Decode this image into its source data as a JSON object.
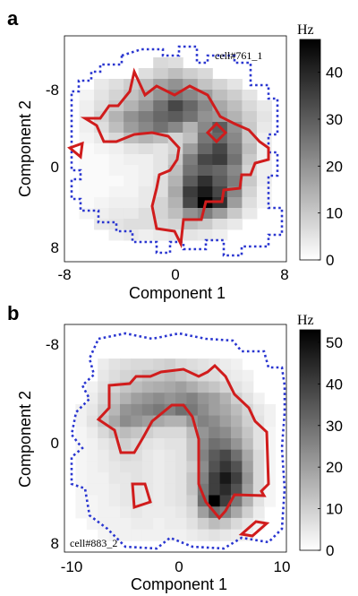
{
  "chart_data": [
    {
      "type": "heatmap",
      "panel_letter": "a",
      "cell_label": "cell#761_1",
      "xlabel": "Component 1",
      "ylabel": "Component 2",
      "xlim": [
        -8,
        8
      ],
      "ylim": [
        -10,
        10
      ],
      "y_inverted": true,
      "xticks": [
        -8,
        0,
        8
      ],
      "yticks": [
        -8,
        0,
        8
      ],
      "colorbar_title": "Hz",
      "colorbar_range": [
        0,
        47
      ],
      "colorbar_ticks": [
        0,
        10,
        20,
        30,
        40
      ],
      "grid": "15x21",
      "contours": [
        "red solid",
        "blue dotted"
      ],
      "rate_map": [
        [
          null,
          null,
          null,
          null,
          null,
          null,
          null,
          null,
          null,
          null,
          null,
          null,
          null,
          null,
          null
        ],
        [
          null,
          null,
          null,
          null,
          null,
          null,
          null,
          null,
          null,
          null,
          null,
          null,
          null,
          null,
          null
        ],
        [
          null,
          null,
          null,
          null,
          null,
          null,
          7,
          6,
          null,
          null,
          null,
          null,
          null,
          null,
          null
        ],
        [
          null,
          null,
          null,
          null,
          null,
          6,
          9,
          12,
          9,
          7,
          null,
          null,
          null,
          null,
          null
        ],
        [
          null,
          null,
          4,
          6,
          9,
          12,
          17,
          20,
          16,
          11,
          8,
          5,
          null,
          null,
          null
        ],
        [
          null,
          2,
          5,
          8,
          11,
          15,
          20,
          25,
          22,
          18,
          12,
          9,
          5,
          null,
          null
        ],
        [
          null,
          3,
          6,
          10,
          14,
          19,
          26,
          34,
          28,
          22,
          16,
          12,
          7,
          4,
          null
        ],
        [
          null,
          3,
          8,
          14,
          20,
          24,
          28,
          30,
          26,
          20,
          18,
          14,
          9,
          5,
          null
        ],
        [
          null,
          3,
          6,
          12,
          18,
          22,
          26,
          22,
          14,
          22,
          30,
          20,
          10,
          4,
          null
        ],
        [
          null,
          2,
          4,
          7,
          12,
          14,
          12,
          8,
          12,
          25,
          28,
          22,
          10,
          3,
          null
        ],
        [
          null,
          1,
          2,
          3,
          5,
          6,
          5,
          8,
          18,
          28,
          34,
          24,
          12,
          3,
          null
        ],
        [
          null,
          1,
          1,
          2,
          3,
          3,
          5,
          10,
          24,
          34,
          36,
          26,
          10,
          3,
          null
        ],
        [
          null,
          1,
          1,
          2,
          2,
          3,
          5,
          12,
          26,
          30,
          28,
          22,
          8,
          3,
          null
        ],
        [
          null,
          1,
          1,
          1,
          2,
          3,
          6,
          14,
          30,
          38,
          30,
          24,
          10,
          3,
          null
        ],
        [
          null,
          1,
          1,
          2,
          2,
          4,
          6,
          16,
          36,
          42,
          34,
          22,
          8,
          2,
          null
        ],
        [
          null,
          1,
          2,
          3,
          3,
          4,
          8,
          14,
          34,
          47,
          38,
          18,
          6,
          2,
          null
        ],
        [
          null,
          2,
          3,
          4,
          4,
          6,
          8,
          12,
          20,
          24,
          18,
          10,
          4,
          null,
          null
        ],
        [
          null,
          null,
          4,
          5,
          6,
          6,
          7,
          8,
          12,
          10,
          6,
          4,
          null,
          null,
          null
        ],
        [
          null,
          null,
          null,
          3,
          4,
          3,
          4,
          5,
          5,
          4,
          3,
          null,
          null,
          null,
          null
        ],
        [
          null,
          null,
          null,
          null,
          null,
          null,
          null,
          null,
          null,
          null,
          null,
          null,
          null,
          null,
          null
        ],
        [
          null,
          null,
          null,
          null,
          null,
          null,
          null,
          null,
          null,
          null,
          null,
          null,
          null,
          null,
          null
        ]
      ]
    },
    {
      "type": "heatmap",
      "panel_letter": "b",
      "cell_label": "cell#883_2",
      "xlabel": "Component 1",
      "ylabel": "Component 2",
      "xlim": [
        -10,
        10
      ],
      "ylim": [
        -10,
        10
      ],
      "y_inverted": true,
      "xticks": [
        -10,
        0,
        10
      ],
      "yticks": [
        -8,
        0,
        8
      ],
      "colorbar_title": "Hz",
      "colorbar_range": [
        0,
        53
      ],
      "colorbar_ticks": [
        0,
        10,
        20,
        30,
        40,
        50
      ],
      "grid": "20x20",
      "contours": [
        "red solid",
        "blue dotted"
      ],
      "rate_map": [
        [
          null,
          null,
          null,
          null,
          null,
          null,
          null,
          null,
          null,
          null,
          null,
          null,
          null,
          null,
          null,
          null,
          null,
          null,
          null,
          null
        ],
        [
          null,
          null,
          null,
          null,
          null,
          null,
          null,
          null,
          null,
          null,
          null,
          null,
          null,
          null,
          null,
          null,
          null,
          null,
          null,
          null
        ],
        [
          null,
          null,
          null,
          null,
          null,
          null,
          null,
          null,
          null,
          null,
          null,
          null,
          null,
          null,
          null,
          null,
          null,
          null,
          null,
          null
        ],
        [
          null,
          null,
          null,
          4,
          6,
          7,
          8,
          8,
          9,
          10,
          8,
          7,
          6,
          5,
          4,
          3,
          null,
          null,
          null,
          null
        ],
        [
          null,
          null,
          null,
          5,
          7,
          9,
          10,
          12,
          12,
          14,
          12,
          10,
          8,
          7,
          5,
          4,
          3,
          null,
          null,
          null
        ],
        [
          null,
          null,
          3,
          6,
          9,
          12,
          14,
          16,
          17,
          18,
          20,
          17,
          14,
          12,
          9,
          6,
          4,
          null,
          null,
          null
        ],
        [
          null,
          null,
          4,
          8,
          12,
          16,
          20,
          22,
          24,
          22,
          24,
          26,
          22,
          20,
          16,
          10,
          6,
          3,
          null,
          null
        ],
        [
          null,
          3,
          5,
          10,
          15,
          22,
          24,
          26,
          28,
          26,
          30,
          28,
          24,
          20,
          18,
          14,
          9,
          5,
          3,
          null
        ],
        [
          null,
          3,
          6,
          12,
          18,
          24,
          22,
          20,
          18,
          16,
          16,
          22,
          26,
          24,
          20,
          16,
          10,
          6,
          3,
          null
        ],
        [
          null,
          2,
          4,
          8,
          12,
          14,
          12,
          10,
          8,
          8,
          8,
          14,
          22,
          26,
          24,
          18,
          12,
          6,
          2,
          null
        ],
        [
          null,
          2,
          3,
          5,
          7,
          10,
          8,
          6,
          5,
          6,
          6,
          12,
          24,
          30,
          28,
          22,
          14,
          6,
          2,
          null
        ],
        [
          null,
          2,
          3,
          4,
          6,
          8,
          7,
          5,
          4,
          5,
          6,
          12,
          26,
          34,
          38,
          30,
          18,
          8,
          2,
          null
        ],
        [
          null,
          2,
          3,
          4,
          5,
          6,
          6,
          5,
          4,
          5,
          6,
          10,
          24,
          36,
          42,
          36,
          20,
          8,
          2,
          null
        ],
        [
          null,
          2,
          3,
          3,
          5,
          5,
          6,
          5,
          4,
          5,
          6,
          12,
          26,
          40,
          48,
          40,
          22,
          8,
          2,
          null
        ],
        [
          null,
          2,
          3,
          3,
          4,
          5,
          6,
          5,
          4,
          5,
          6,
          12,
          28,
          40,
          44,
          36,
          20,
          8,
          2,
          null
        ],
        [
          null,
          2,
          2,
          3,
          4,
          5,
          6,
          5,
          4,
          5,
          6,
          10,
          30,
          53,
          40,
          28,
          16,
          6,
          2,
          null
        ],
        [
          null,
          2,
          2,
          3,
          3,
          4,
          5,
          4,
          4,
          4,
          5,
          8,
          20,
          30,
          26,
          18,
          10,
          4,
          null,
          null
        ],
        [
          null,
          null,
          2,
          3,
          3,
          3,
          4,
          4,
          3,
          4,
          4,
          6,
          10,
          14,
          12,
          8,
          5,
          3,
          null,
          null
        ],
        [
          null,
          null,
          null,
          2,
          3,
          3,
          3,
          3,
          3,
          3,
          3,
          4,
          5,
          6,
          5,
          4,
          3,
          null,
          null,
          null
        ],
        [
          null,
          null,
          null,
          null,
          null,
          null,
          null,
          null,
          null,
          null,
          null,
          null,
          null,
          null,
          null,
          null,
          null,
          null,
          null,
          null
        ]
      ]
    }
  ]
}
